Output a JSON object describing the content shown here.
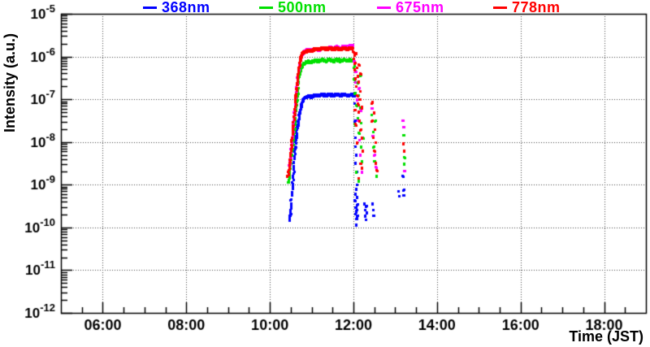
{
  "chart_data": {
    "type": "scatter",
    "title": "",
    "xlabel": "Time (JST)",
    "ylabel": "Intensity (a.u.)",
    "x_axis": {
      "unit": "time of day (JST)",
      "min_hour": 5,
      "max_hour": 19,
      "major_tick_hours": [
        6,
        8,
        10,
        12,
        14,
        16,
        18
      ],
      "tick_labels": [
        "06:00",
        "08:00",
        "10:00",
        "12:00",
        "14:00",
        "16:00",
        "18:00"
      ],
      "minor_tick_step_hours": 0.5
    },
    "y_axis": {
      "scale": "log",
      "min_exponent": -12,
      "max_exponent": -5,
      "tick_exponents": [
        -5,
        -6,
        -7,
        -8,
        -9,
        -10,
        -11,
        -12
      ],
      "tick_mantissa": "10"
    },
    "grid": {
      "horizontal": "every decade",
      "vertical": "every 2 hours",
      "style": "dotted",
      "color": "#444444"
    },
    "legend": {
      "position": "top",
      "entries": [
        {
          "label": "368nm",
          "color": "#0000ff"
        },
        {
          "label": "500nm",
          "color": "#00e000"
        },
        {
          "label": "675nm",
          "color": "#ff00ff"
        },
        {
          "label": "778nm",
          "color": "#ff0000"
        }
      ]
    },
    "series": [
      {
        "name": "368nm",
        "color": "#0000ff",
        "rise": [
          [
            10.46,
            -9.85
          ],
          [
            10.47,
            -9.72
          ],
          [
            10.49,
            -9.62
          ],
          [
            10.5,
            -9.5
          ],
          [
            10.52,
            -9.2
          ],
          [
            10.54,
            -8.92
          ],
          [
            10.56,
            -8.7
          ],
          [
            10.58,
            -8.45
          ],
          [
            10.6,
            -8.18
          ],
          [
            10.62,
            -7.95
          ],
          [
            10.64,
            -7.75
          ],
          [
            10.66,
            -7.58
          ],
          [
            10.68,
            -7.45
          ],
          [
            10.7,
            -7.34
          ],
          [
            10.72,
            -7.24
          ],
          [
            10.74,
            -7.15
          ],
          [
            10.76,
            -7.07
          ],
          [
            10.79,
            -7.0
          ],
          [
            10.82,
            -6.96
          ],
          [
            10.85,
            -6.94
          ]
        ],
        "plateau": {
          "t_start": 10.85,
          "t_end": 12.04,
          "logI_start": -6.94,
          "logI_end": -6.89,
          "ramp_frac": 0.3
        },
        "scatter": [
          [
            12.02,
            -7.1
          ],
          [
            12.03,
            -7.5
          ],
          [
            12.04,
            -7.9
          ],
          [
            12.05,
            -8.3
          ],
          [
            12.03,
            -8.1
          ],
          [
            12.04,
            -8.5
          ],
          [
            12.06,
            -8.7
          ],
          [
            12.07,
            -9.0
          ],
          [
            12.03,
            -9.2
          ],
          [
            12.04,
            -9.38
          ],
          [
            12.05,
            -9.52
          ],
          [
            12.06,
            -9.65
          ],
          [
            12.07,
            -9.8
          ],
          [
            12.05,
            -9.93
          ],
          [
            12.06,
            -9.1
          ],
          [
            12.08,
            -9.3
          ],
          [
            12.08,
            -9.58
          ],
          [
            12.09,
            -9.45
          ],
          [
            12.09,
            -9.72
          ],
          [
            12.26,
            -9.45
          ],
          [
            12.27,
            -9.58
          ],
          [
            12.28,
            -9.72
          ],
          [
            12.29,
            -9.5
          ],
          [
            12.3,
            -9.82
          ],
          [
            12.31,
            -9.65
          ],
          [
            12.44,
            -9.45
          ],
          [
            12.46,
            -9.58
          ],
          [
            12.48,
            -9.72
          ],
          [
            13.07,
            -9.15
          ],
          [
            13.08,
            -9.27
          ],
          [
            13.18,
            -8.8
          ],
          [
            13.19,
            -9.12
          ],
          [
            13.2,
            -9.24
          ]
        ]
      },
      {
        "name": "500nm",
        "color": "#00e000",
        "rise": [
          [
            10.44,
            -8.95
          ],
          [
            10.46,
            -8.8
          ],
          [
            10.48,
            -8.62
          ],
          [
            10.5,
            -8.45
          ],
          [
            10.52,
            -8.28
          ],
          [
            10.54,
            -8.05
          ],
          [
            10.56,
            -7.85
          ],
          [
            10.58,
            -7.65
          ],
          [
            10.6,
            -7.45
          ],
          [
            10.62,
            -7.25
          ],
          [
            10.64,
            -7.02
          ],
          [
            10.66,
            -6.82
          ],
          [
            10.68,
            -6.62
          ],
          [
            10.7,
            -6.45
          ],
          [
            10.72,
            -6.35
          ],
          [
            10.75,
            -6.25
          ],
          [
            10.78,
            -6.18
          ],
          [
            10.82,
            -6.15
          ],
          [
            10.85,
            -6.13
          ]
        ],
        "plateau": {
          "t_start": 10.85,
          "t_end": 11.97,
          "logI_start": -6.13,
          "logI_end": -6.08,
          "ramp_frac": 0.35
        },
        "scatter": [
          [
            12.0,
            -6.25
          ],
          [
            12.02,
            -6.55
          ],
          [
            12.04,
            -6.85
          ],
          [
            12.05,
            -6.35
          ],
          [
            12.07,
            -7.15
          ],
          [
            12.09,
            -6.6
          ],
          [
            12.1,
            -7.45
          ],
          [
            12.12,
            -6.9
          ],
          [
            12.13,
            -7.8
          ],
          [
            12.15,
            -7.2
          ],
          [
            12.17,
            -8.1
          ],
          [
            12.18,
            -7.55
          ],
          [
            12.2,
            -8.45
          ],
          [
            12.21,
            -7.9
          ],
          [
            12.06,
            -8.7
          ],
          [
            12.11,
            -8.9
          ],
          [
            12.16,
            -6.45
          ],
          [
            12.03,
            -7.6
          ],
          [
            12.43,
            -7.35
          ],
          [
            12.46,
            -7.75
          ],
          [
            12.48,
            -8.1
          ],
          [
            12.5,
            -8.45
          ],
          [
            12.52,
            -7.5
          ],
          [
            12.54,
            -8.8
          ],
          [
            13.19,
            -7.83
          ],
          [
            13.2,
            -8.35
          ],
          [
            13.21,
            -8.5
          ]
        ]
      },
      {
        "name": "675nm",
        "color": "#ff00ff",
        "rise": [
          [
            10.46,
            -8.55
          ],
          [
            10.5,
            -8.2
          ],
          [
            10.54,
            -7.79
          ],
          [
            10.58,
            -7.3
          ],
          [
            10.62,
            -6.9
          ],
          [
            10.66,
            -6.5
          ],
          [
            10.7,
            -6.2
          ],
          [
            10.74,
            -6.0
          ],
          [
            10.78,
            -5.92
          ],
          [
            10.82,
            -5.87
          ]
        ],
        "plateau": {
          "t_start": 10.85,
          "t_end": 11.97,
          "logI_start": -5.85,
          "logI_end": -5.75,
          "ramp_frac": 1.0
        },
        "scatter": [
          [
            12.01,
            -6.1
          ],
          [
            12.04,
            -6.6
          ],
          [
            12.07,
            -7.0
          ],
          [
            12.1,
            -7.5
          ],
          [
            12.13,
            -7.95
          ],
          [
            12.16,
            -8.3
          ],
          [
            12.19,
            -8.7
          ],
          [
            12.06,
            -6.35
          ],
          [
            12.12,
            -6.75
          ],
          [
            12.18,
            -7.25
          ],
          [
            12.44,
            -7.2
          ],
          [
            12.47,
            -7.85
          ],
          [
            12.51,
            -8.3
          ],
          [
            12.54,
            -8.6
          ],
          [
            13.19,
            -7.5
          ],
          [
            13.2,
            -7.64
          ],
          [
            13.21,
            -8.68
          ]
        ]
      },
      {
        "name": "778nm",
        "color": "#ff0000",
        "rise": [
          [
            10.42,
            -8.82
          ],
          [
            10.43,
            -8.72
          ],
          [
            10.45,
            -8.6
          ],
          [
            10.46,
            -8.5
          ],
          [
            10.48,
            -8.38
          ],
          [
            10.5,
            -8.2
          ],
          [
            10.52,
            -8.0
          ],
          [
            10.54,
            -7.78
          ],
          [
            10.56,
            -7.55
          ],
          [
            10.58,
            -7.32
          ],
          [
            10.6,
            -7.1
          ],
          [
            10.62,
            -6.88
          ],
          [
            10.64,
            -6.68
          ],
          [
            10.66,
            -6.5
          ],
          [
            10.68,
            -6.34
          ],
          [
            10.7,
            -6.2
          ],
          [
            10.72,
            -6.08
          ],
          [
            10.74,
            -5.99
          ],
          [
            10.77,
            -5.93
          ],
          [
            10.8,
            -5.9
          ],
          [
            10.83,
            -5.88
          ]
        ],
        "plateau": {
          "t_start": 10.83,
          "t_end": 11.97,
          "logI_start": -5.88,
          "logI_end": -5.81,
          "ramp_frac": 0.3
        },
        "scatter": [
          [
            11.99,
            -5.88
          ],
          [
            12.0,
            -6.05
          ],
          [
            12.01,
            -5.95
          ],
          [
            12.02,
            -6.3
          ],
          [
            12.03,
            -6.15
          ],
          [
            12.04,
            -6.5
          ],
          [
            12.05,
            -5.92
          ],
          [
            12.06,
            -6.7
          ],
          [
            12.07,
            -6.25
          ],
          [
            12.08,
            -6.9
          ],
          [
            12.09,
            -6.45
          ],
          [
            12.1,
            -7.1
          ],
          [
            12.11,
            -6.6
          ],
          [
            12.12,
            -7.3
          ],
          [
            12.13,
            -6.2
          ],
          [
            12.14,
            -7.5
          ],
          [
            12.15,
            -6.8
          ],
          [
            12.16,
            -7.0
          ],
          [
            12.17,
            -7.7
          ],
          [
            12.18,
            -6.4
          ],
          [
            12.19,
            -7.9
          ],
          [
            12.2,
            -7.2
          ],
          [
            12.21,
            -8.2
          ],
          [
            12.16,
            -8.5
          ],
          [
            12.05,
            -7.6
          ],
          [
            12.08,
            -8.0
          ],
          [
            12.12,
            -8.85
          ],
          [
            12.03,
            -7.25
          ],
          [
            12.19,
            -8.6
          ],
          [
            12.42,
            -7.1
          ],
          [
            12.44,
            -7.5
          ],
          [
            12.45,
            -7.05
          ],
          [
            12.46,
            -7.9
          ],
          [
            12.48,
            -7.3
          ],
          [
            12.49,
            -8.2
          ],
          [
            12.5,
            -7.7
          ],
          [
            12.52,
            -8.5
          ],
          [
            12.53,
            -8.0
          ],
          [
            12.55,
            -8.65
          ],
          [
            13.19,
            -8.05
          ],
          [
            13.2,
            -8.2
          ]
        ]
      }
    ]
  }
}
